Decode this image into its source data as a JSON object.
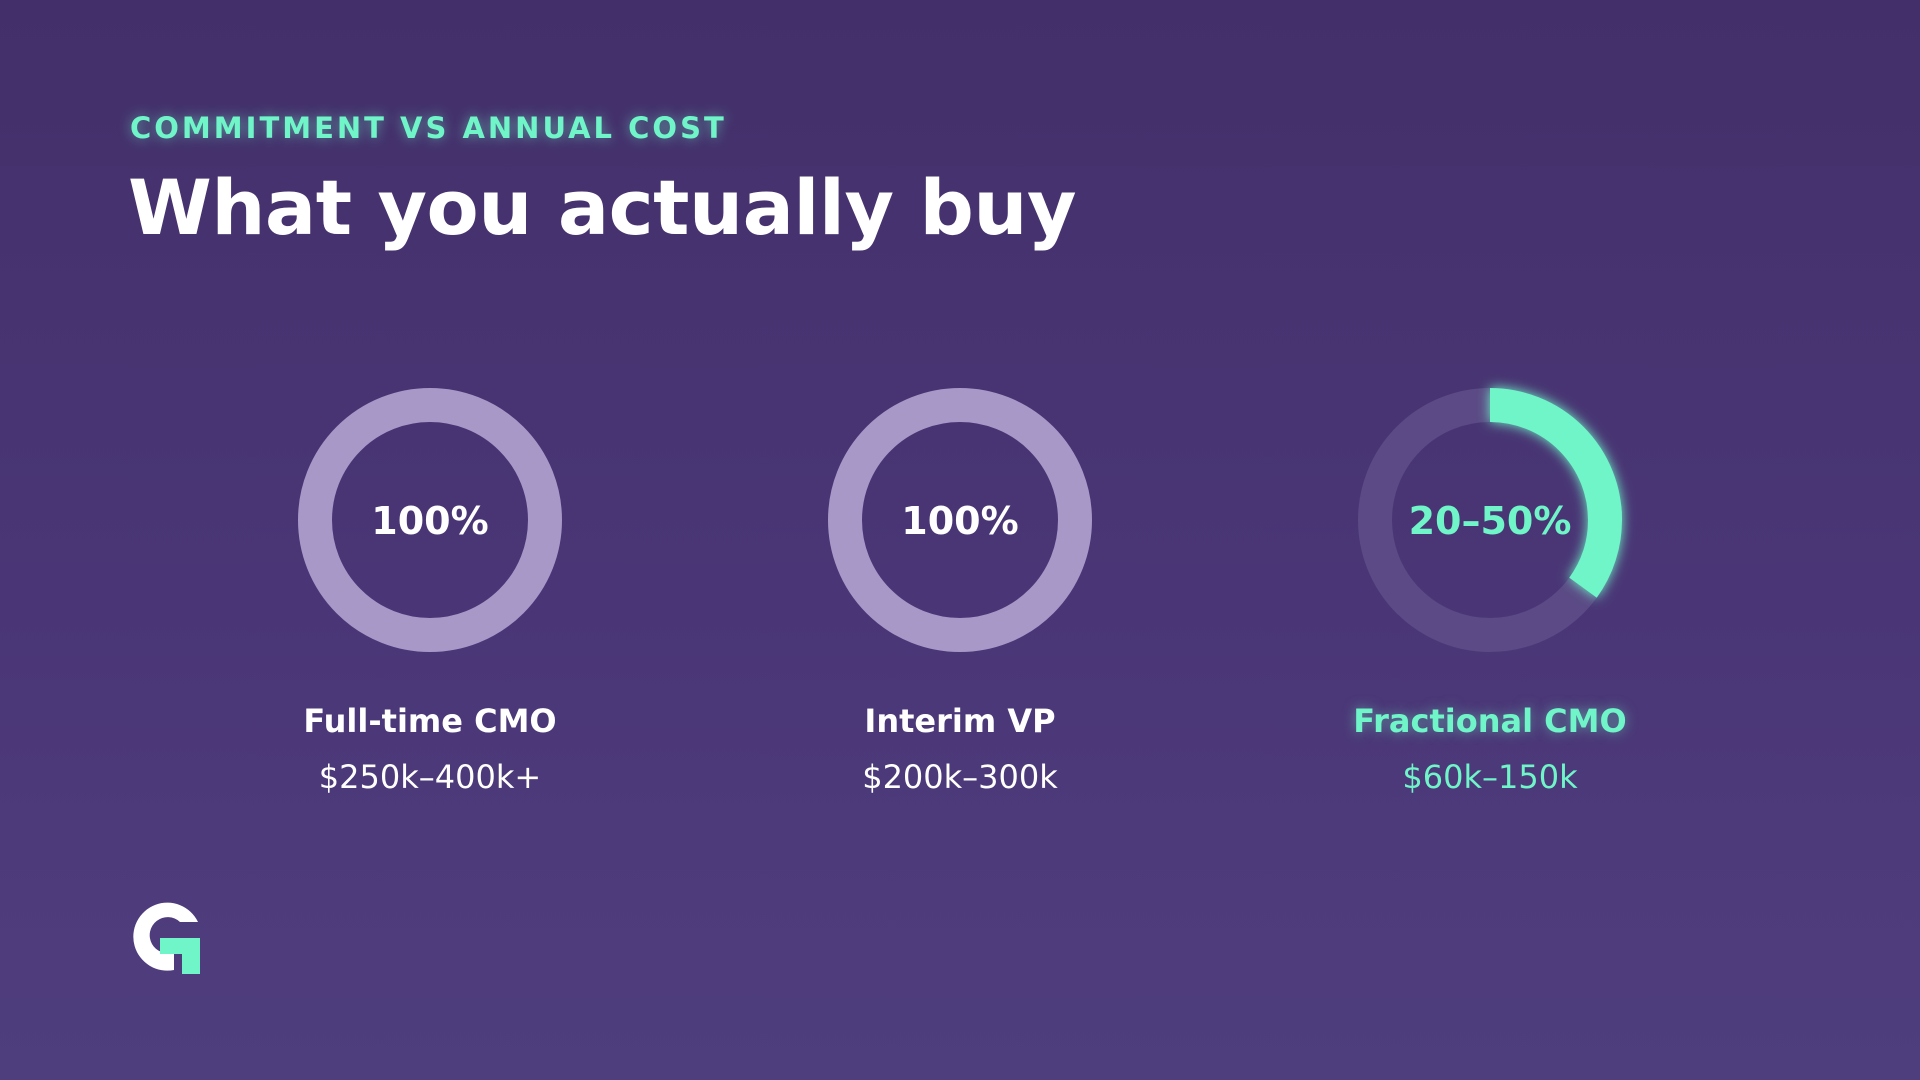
{
  "header": {
    "eyebrow": "COMMITMENT VS ANNUAL COST",
    "title": "What you actually buy"
  },
  "colors": {
    "accent": "#6ff5c8",
    "ring_full": "#a898c8",
    "ring_track": "#5b4a85",
    "text_white": "#ffffff",
    "background_top": "#43306a",
    "background_bottom": "#4f3e7e"
  },
  "logo": {
    "icon": "g-logo-icon"
  },
  "chart_data": {
    "type": "pie",
    "title": "",
    "unit": "% commitment",
    "series": [
      {
        "label": "Full-time CMO",
        "cost": "$250k–400k+",
        "value_text": "100%",
        "commitment_min": 100,
        "commitment_max": 100,
        "highlight": false
      },
      {
        "label": "Interim VP",
        "cost": "$200k–300k",
        "value_text": "100%",
        "commitment_min": 100,
        "commitment_max": 100,
        "highlight": false
      },
      {
        "label": "Fractional CMO",
        "cost": "$60k–150k",
        "value_text": "20–50%",
        "commitment_min": 20,
        "commitment_max": 50,
        "arc_fill_percent": 35,
        "highlight": true
      }
    ]
  }
}
